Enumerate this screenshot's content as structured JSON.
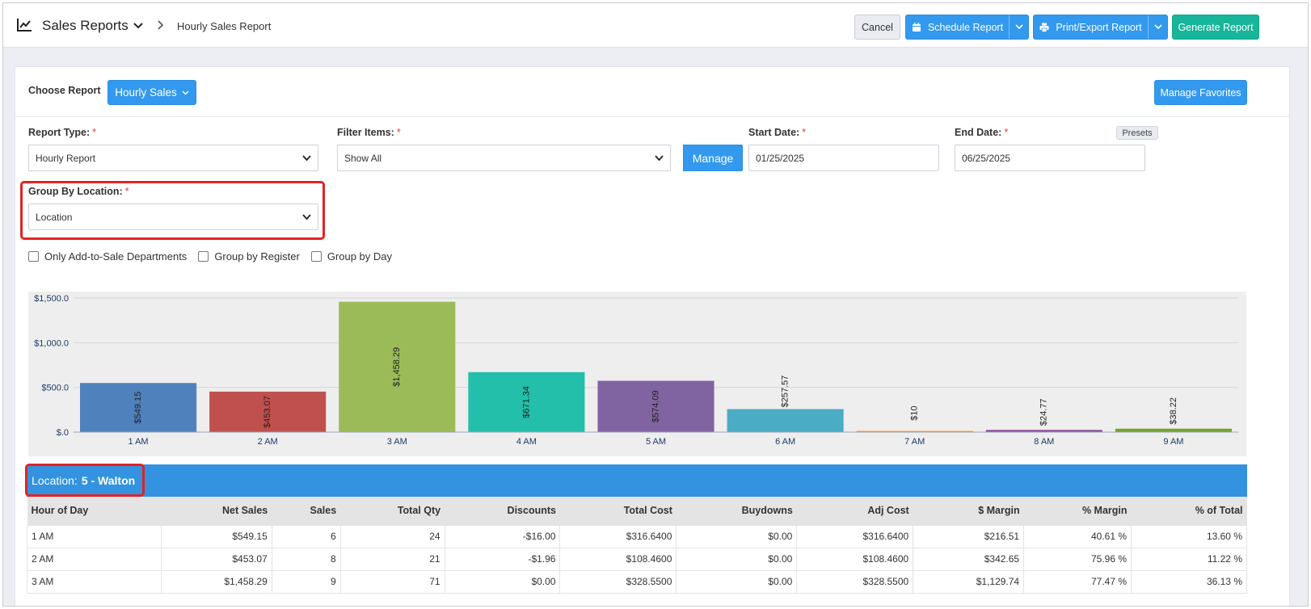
{
  "header": {
    "title": "Sales Reports",
    "breadcrumb": "Hourly Sales Report",
    "buttons": {
      "cancel": "Cancel",
      "schedule": "Schedule Report",
      "print": "Print/Export Report",
      "generate": "Generate Report"
    }
  },
  "report_picker": {
    "label": "Choose Report",
    "selected": "Hourly Sales",
    "manage_favorites": "Manage Favorites"
  },
  "filters": {
    "report_type": {
      "label": "Report Type:",
      "value": "Hourly Report"
    },
    "filter_items": {
      "label": "Filter Items:",
      "value": "Show All",
      "manage": "Manage"
    },
    "start_date": {
      "label": "Start Date:",
      "value": "01/25/2025"
    },
    "end_date": {
      "label": "End Date:",
      "value": "06/25/2025",
      "presets": "Presets"
    },
    "group_by_location": {
      "label": "Group By Location:",
      "value": "Location"
    },
    "required_mark": "*",
    "checkboxes": [
      "Only Add-to-Sale Departments",
      "Group by Register",
      "Group by Day"
    ]
  },
  "chart_data": {
    "type": "bar",
    "categories": [
      "1 AM",
      "2 AM",
      "3 AM",
      "4 AM",
      "5 AM",
      "6 AM",
      "7 AM",
      "8 AM",
      "9 AM"
    ],
    "values": [
      549.15,
      453.07,
      1458.29,
      671.34,
      574.09,
      257.57,
      10,
      24.77,
      38.22
    ],
    "data_labels": [
      "$549.15",
      "$453.07",
      "$1,458.29",
      "$671.34",
      "$574.09",
      "$257.57",
      "$10",
      "$24.77",
      "$38.22"
    ],
    "colors": [
      "#4f81bd",
      "#c0504d",
      "#9bbb59",
      "#23bfaa",
      "#8064a2",
      "#4bacc6",
      "#f79646",
      "#8c4f9f",
      "#77a033"
    ],
    "ylim": [
      0,
      1500
    ],
    "yticks": [
      "$.0",
      "$500.0",
      "$1,000.0",
      "$1,500.0"
    ],
    "ytick_values": [
      0,
      500,
      1000,
      1500
    ],
    "grid": true
  },
  "location": {
    "prefix": "Location:",
    "name": "5 - Walton"
  },
  "table": {
    "columns": [
      "Hour of Day",
      "Net Sales",
      "Sales",
      "Total Qty",
      "Discounts",
      "Total Cost",
      "Buydowns",
      "Adj Cost",
      "$ Margin",
      "% Margin",
      "% of Total"
    ],
    "rows": [
      [
        "1 AM",
        "$549.15",
        "6",
        "24",
        "-$16.00",
        "$316.6400",
        "$0.00",
        "$316.6400",
        "$216.51",
        "40.61 %",
        "13.60 %"
      ],
      [
        "2 AM",
        "$453.07",
        "8",
        "21",
        "-$1.96",
        "$108.4600",
        "$0.00",
        "$108.4600",
        "$342.65",
        "75.96 %",
        "11.22 %"
      ],
      [
        "3 AM",
        "$1,458.29",
        "9",
        "71",
        "$0.00",
        "$328.5500",
        "$0.00",
        "$328.5500",
        "$1,129.74",
        "77.47 %",
        "36.13 %"
      ]
    ]
  }
}
